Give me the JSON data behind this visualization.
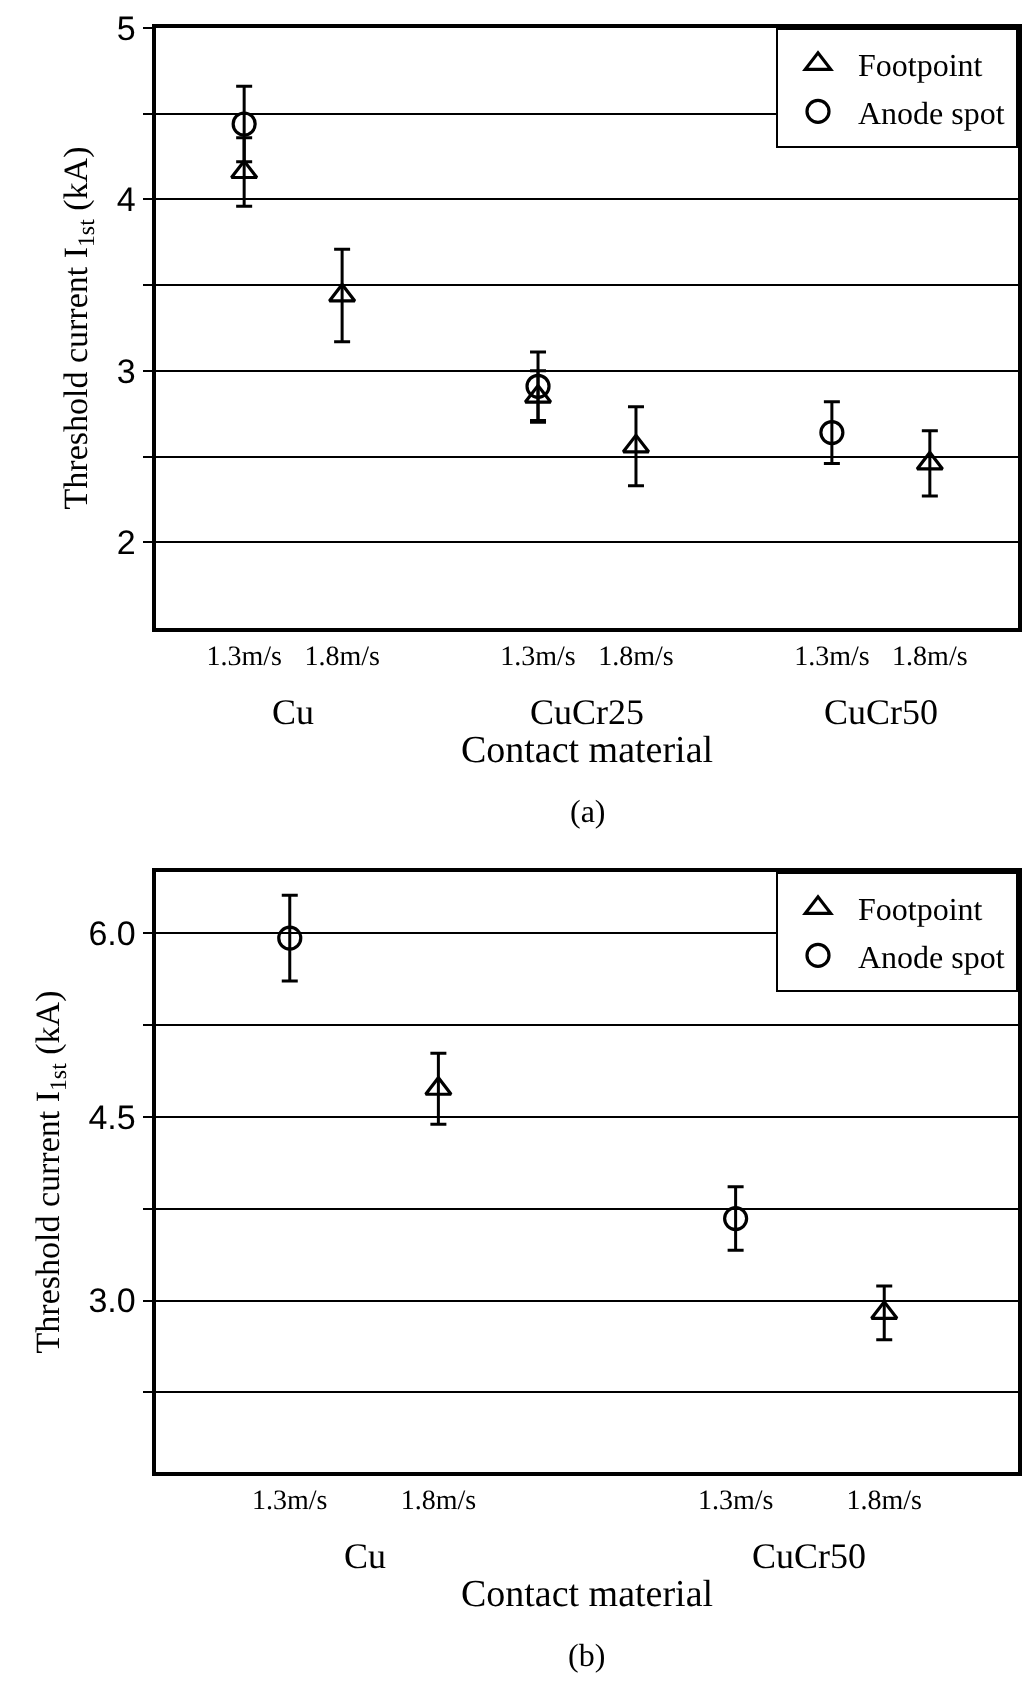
{
  "chart_data": [
    {
      "type": "scatter",
      "xlabel": "Contact material",
      "ylabel": "Threshold current I$_{1st}$ (kA)",
      "categories": [
        "1.3m/s",
        "1.8m/s",
        null,
        "1.3m/s",
        "1.8m/s",
        null,
        "1.3m/s",
        "1.8m/s"
      ],
      "series": [
        {
          "name": "Footpoint",
          "color": "#000000",
          "marker": "triangle",
          "values": [
            4.16,
            3.44,
            null,
            2.85,
            2.56,
            null,
            null,
            2.46
          ],
          "errors": [
            0.2,
            0.27,
            null,
            0.15,
            0.23,
            null,
            null,
            0.19
          ]
        },
        {
          "name": "Anode spot",
          "color": "#000000",
          "marker": "circle",
          "values": [
            4.44,
            null,
            null,
            2.91,
            null,
            null,
            2.64,
            null
          ],
          "errors": [
            0.22,
            null,
            null,
            0.2,
            null,
            null,
            0.18,
            null
          ]
        }
      ],
      "ylim": [
        1.5,
        5
      ],
      "yticks": [
        2,
        {
          "value": 2.5,
          "label": null
        },
        3,
        {
          "value": 3.5,
          "label": null
        },
        4,
        {
          "value": 4.5,
          "label": null
        },
        5
      ],
      "grid": "y",
      "legend": "top right",
      "annotations": [
        "Cu",
        "CuCr25",
        "CuCr50",
        "(a)"
      ]
    },
    {
      "type": "scatter",
      "xlabel": "Contact material",
      "ylabel": "Threshold current I$_{1st}$ (kA)",
      "categories": [
        "1.3m/s",
        "1.8m/s",
        null,
        "1.3m/s",
        "1.8m/s"
      ],
      "series": [
        {
          "name": "Footpoint",
          "color": "#000000",
          "marker": "triangle",
          "values": [
            null,
            4.73,
            null,
            null,
            2.9
          ],
          "errors": [
            null,
            0.29,
            null,
            null,
            0.22
          ]
        },
        {
          "name": "Anode spot",
          "color": "#000000",
          "marker": "circle",
          "values": [
            5.96,
            null,
            null,
            3.67,
            null
          ],
          "errors": [
            0.35,
            null,
            null,
            0.26,
            null
          ]
        }
      ],
      "ylim": [
        1.6,
        6.5
      ],
      "yticks": [
        {
          "value": 2.25,
          "label": null
        },
        {
          "value": 3,
          "label": "3.0"
        },
        {
          "value": 3.75,
          "label": null
        },
        {
          "value": 4.5,
          "label": "4.5"
        },
        {
          "value": 5.25,
          "label": null
        },
        {
          "value": 6,
          "label": "6.0"
        }
      ],
      "grid": "y",
      "legend": "top right",
      "annotations": [
        "Cu",
        "CuCr50",
        "(b)"
      ]
    }
  ]
}
